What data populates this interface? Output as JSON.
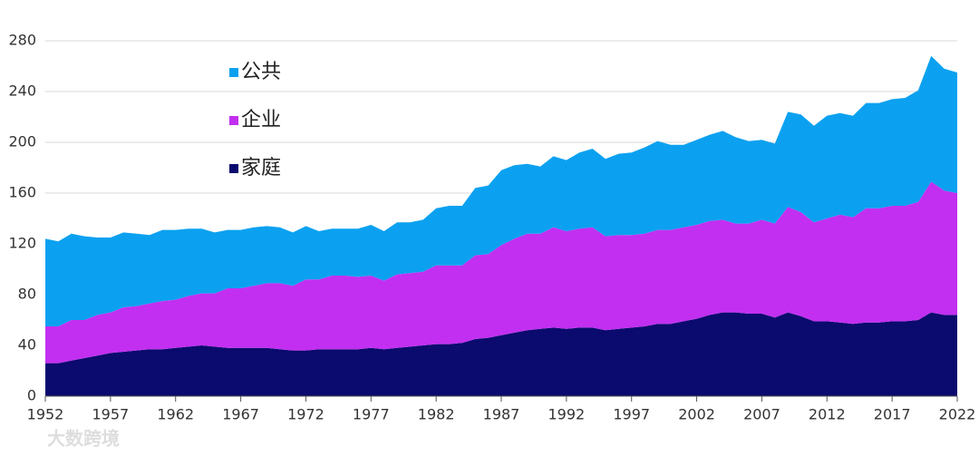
{
  "chart_data": {
    "type": "stacked_area",
    "x": [
      1952,
      1953,
      1954,
      1955,
      1956,
      1957,
      1958,
      1959,
      1960,
      1961,
      1962,
      1963,
      1964,
      1965,
      1966,
      1967,
      1968,
      1969,
      1970,
      1971,
      1972,
      1973,
      1974,
      1975,
      1976,
      1977,
      1978,
      1979,
      1980,
      1981,
      1982,
      1983,
      1984,
      1985,
      1986,
      1987,
      1988,
      1989,
      1990,
      1991,
      1992,
      1993,
      1994,
      1995,
      1996,
      1997,
      1998,
      1999,
      2000,
      2001,
      2002,
      2003,
      2004,
      2005,
      2006,
      2007,
      2008,
      2009,
      2010,
      2011,
      2012,
      2013,
      2014,
      2015,
      2016,
      2017,
      2018,
      2019,
      2020,
      2021,
      2022
    ],
    "series": [
      {
        "name": "家庭",
        "color": "#0b0a6e",
        "values": [
          26,
          26,
          28,
          30,
          32,
          34,
          35,
          36,
          37,
          37,
          38,
          39,
          40,
          39,
          38,
          38,
          38,
          38,
          37,
          36,
          36,
          37,
          37,
          37,
          37,
          38,
          37,
          38,
          39,
          40,
          41,
          41,
          42,
          45,
          46,
          48,
          50,
          52,
          53,
          54,
          53,
          54,
          54,
          52,
          53,
          54,
          55,
          57,
          57,
          59,
          61,
          64,
          66,
          66,
          65,
          65,
          62,
          66,
          63,
          59,
          59,
          58,
          57,
          58,
          58,
          59,
          59,
          60,
          66,
          64,
          64
        ]
      },
      {
        "name": "企业",
        "color": "#c22ff0",
        "values": [
          29,
          29,
          32,
          30,
          32,
          32,
          35,
          35,
          36,
          38,
          38,
          40,
          41,
          42,
          47,
          47,
          49,
          51,
          52,
          51,
          56,
          55,
          58,
          58,
          57,
          57,
          54,
          58,
          58,
          58,
          62,
          62,
          61,
          66,
          66,
          71,
          74,
          76,
          75,
          79,
          77,
          78,
          79,
          74,
          74,
          73,
          73,
          74,
          74,
          74,
          74,
          74,
          73,
          70,
          71,
          74,
          74,
          83,
          82,
          78,
          81,
          85,
          84,
          90,
          90,
          91,
          91,
          93,
          103,
          98,
          96
        ]
      },
      {
        "name": "公共",
        "color": "#0ba1f0",
        "values": [
          69,
          67,
          68,
          66,
          61,
          59,
          59,
          57,
          54,
          56,
          55,
          53,
          51,
          48,
          46,
          46,
          46,
          45,
          44,
          42,
          42,
          38,
          37,
          37,
          38,
          40,
          39,
          41,
          40,
          41,
          45,
          47,
          47,
          53,
          54,
          59,
          58,
          55,
          53,
          56,
          56,
          60,
          62,
          61,
          64,
          65,
          68,
          70,
          67,
          65,
          67,
          68,
          70,
          68,
          65,
          63,
          63,
          75,
          77,
          76,
          81,
          80,
          80,
          83,
          83,
          84,
          85,
          88,
          99,
          96,
          95
        ]
      }
    ],
    "xlim": [
      1952,
      2022
    ],
    "xticks": [
      1952,
      1957,
      1962,
      1967,
      1972,
      1977,
      1982,
      1987,
      1992,
      1997,
      2002,
      2007,
      2012,
      2017,
      2022
    ],
    "ylim": [
      0,
      280
    ],
    "yticks": [
      0,
      40,
      80,
      120,
      160,
      200,
      240,
      280
    ],
    "grid": true,
    "legend": "upper left",
    "watermark": "大数跨境"
  }
}
